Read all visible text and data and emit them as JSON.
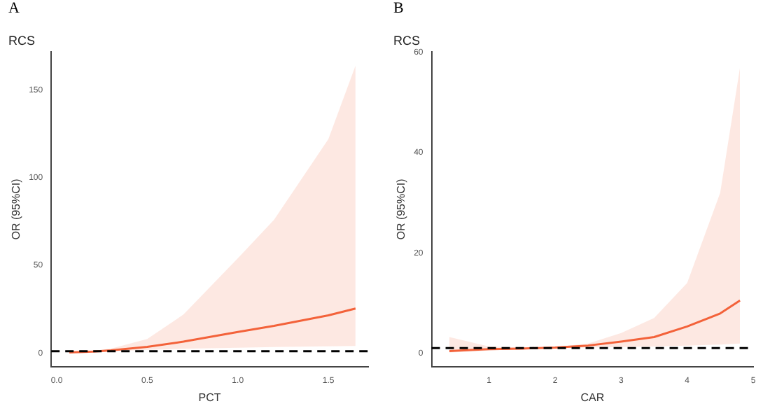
{
  "chart_data": [
    {
      "type": "line",
      "title": "RCS",
      "annotations": [
        "A"
      ],
      "xlabel": "PCT",
      "ylabel": "OR (95%CI)",
      "xlim": [
        -0.03,
        1.72
      ],
      "xticks": [
        {
          "value": 0,
          "label": "0.0"
        },
        0.5,
        {
          "value": 1,
          "label": "1.0"
        },
        1.5
      ],
      "ylim": [
        -8,
        172
      ],
      "yticks": [
        0,
        50,
        100,
        150
      ],
      "grid": false,
      "legend": false,
      "marker": "none",
      "line_style": "solid",
      "series": [
        {
          "color": "#f4623a",
          "x": [
            0.07,
            0.2,
            0.3,
            0.5,
            0.7,
            1.0,
            1.2,
            1.5,
            1.65
          ],
          "values": [
            0.3,
            0.8,
            1.5,
            3.5,
            6.5,
            12,
            15.5,
            21.5,
            25.4
          ],
          "lower": [
            0.1,
            0.5,
            1,
            1.8,
            2.4,
            3,
            3.4,
            3.8,
            4
          ],
          "upper": [
            0.6,
            1.2,
            2.5,
            8,
            22,
            54,
            76,
            122,
            164
          ]
        }
      ],
      "ref_lines": [
        {
          "axis": "y",
          "value": 1,
          "color": "#000000",
          "line_style": "dashed"
        }
      ]
    },
    {
      "type": "line",
      "title": "RCS",
      "annotations": [
        "B"
      ],
      "xlabel": "CAR",
      "ylabel": "OR (95%CI)",
      "xlim": [
        0.13,
        5
      ],
      "xticks": [
        1,
        2,
        3,
        4,
        5
      ],
      "ylim": [
        -2.8,
        60.2
      ],
      "yticks": [
        0,
        20,
        40,
        60
      ],
      "grid": false,
      "legend": false,
      "marker": "none",
      "line_style": "solid",
      "series": [
        {
          "color": "#f4623a",
          "x": [
            0.4,
            1,
            1.5,
            2,
            2.5,
            3,
            3.5,
            4,
            4.5,
            4.8
          ],
          "values": [
            0.4,
            0.8,
            0.9,
            1.1,
            1.5,
            2.3,
            3.2,
            5.3,
            7.9,
            10.5
          ],
          "lower": [
            0.1,
            0.5,
            0.8,
            1,
            1.1,
            1.2,
            1.3,
            1.5,
            1.7,
            1.9
          ],
          "upper": [
            3.2,
            1.3,
            1.1,
            1.2,
            1.9,
            4,
            7,
            14,
            32,
            57
          ]
        }
      ],
      "ref_lines": [
        {
          "axis": "y",
          "value": 1,
          "color": "#000000",
          "line_style": "dashed"
        }
      ]
    }
  ]
}
